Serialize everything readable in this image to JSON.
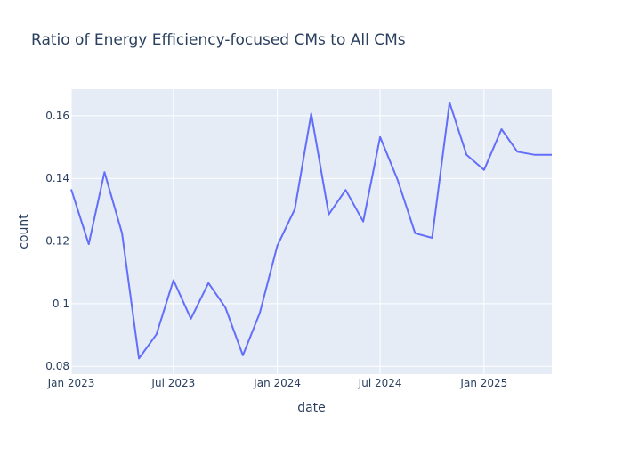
{
  "chart_data": {
    "type": "line",
    "title": "Ratio of Energy Efficiency-focused CMs to All CMs",
    "xlabel": "date",
    "ylabel": "count",
    "xlim": [
      "2023-01-01",
      "2025-05-01"
    ],
    "ylim": [
      0.0775,
      0.1685
    ],
    "x_ticks": [
      {
        "value": "2023-01-01",
        "label": "Jan 2023"
      },
      {
        "value": "2023-07-01",
        "label": "Jul 2023"
      },
      {
        "value": "2024-01-01",
        "label": "Jan 2024"
      },
      {
        "value": "2024-07-01",
        "label": "Jul 2024"
      },
      {
        "value": "2025-01-01",
        "label": "Jan 2025"
      }
    ],
    "y_ticks": [
      {
        "value": 0.08,
        "label": "0.08"
      },
      {
        "value": 0.1,
        "label": "0.1"
      },
      {
        "value": 0.12,
        "label": "0.12"
      },
      {
        "value": 0.14,
        "label": "0.14"
      },
      {
        "value": 0.16,
        "label": "0.16"
      }
    ],
    "grid": true,
    "legend": "none",
    "colors": {
      "plot_background": "#e5ecf6",
      "grid": "#ffffff",
      "line": "#636efa"
    },
    "series": [
      {
        "x": [
          "2023-01-01",
          "2023-02-01",
          "2023-03-01",
          "2023-04-01",
          "2023-05-01",
          "2023-06-01",
          "2023-07-01",
          "2023-08-01",
          "2023-09-01",
          "2023-10-01",
          "2023-11-01",
          "2023-12-01",
          "2024-01-01",
          "2024-02-01",
          "2024-03-01",
          "2024-04-01",
          "2024-05-01",
          "2024-06-01",
          "2024-07-01",
          "2024-08-01",
          "2024-09-01",
          "2024-10-01",
          "2024-11-01",
          "2024-12-01",
          "2025-01-01",
          "2025-02-01",
          "2025-03-01",
          "2025-04-01",
          "2025-05-01"
        ],
        "y": [
          0.1365,
          0.119,
          0.142,
          0.1225,
          0.0825,
          0.0902,
          0.1075,
          0.0952,
          0.1066,
          0.0988,
          0.0835,
          0.097,
          0.1185,
          0.1302,
          0.1607,
          0.1285,
          0.1363,
          0.1262,
          0.1532,
          0.1395,
          0.1225,
          0.121,
          0.1642,
          0.1475,
          0.1427,
          0.1557,
          0.1485,
          0.1475,
          0.1475
        ]
      }
    ]
  }
}
